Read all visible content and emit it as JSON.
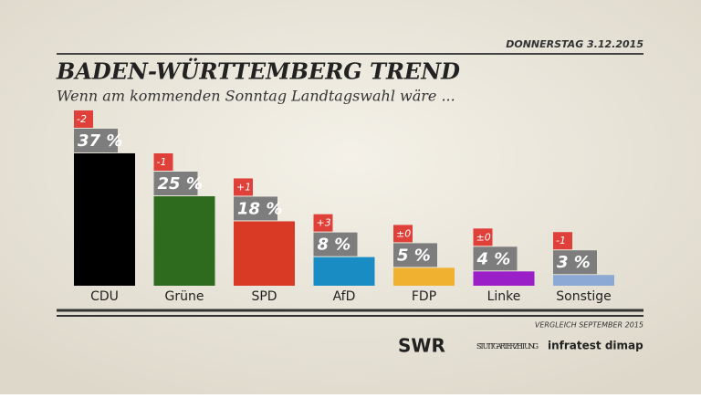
{
  "chart_data": {
    "type": "bar",
    "date": "DONNERSTAG 3.12.2015",
    "title": "BADEN-WÜRTTEMBERG TREND",
    "subtitle": "Wenn am kommenden Sonntag Landtagswahl wäre ...",
    "categories": [
      "CDU",
      "Grüne",
      "SPD",
      "AfD",
      "FDP",
      "Linke",
      "Sonstige"
    ],
    "values": [
      37,
      25,
      18,
      8,
      5,
      4,
      3
    ],
    "value_labels": [
      "37 %",
      "25 %",
      "18 %",
      "8 %",
      "5 %",
      "4 %",
      "3 %"
    ],
    "changes": [
      -2,
      -1,
      1,
      3,
      0,
      0,
      -1
    ],
    "change_labels": [
      "-2",
      "-1",
      "+1",
      "+3",
      "±0",
      "±0",
      "-1"
    ],
    "colors": [
      "#000000",
      "#2e6b1e",
      "#d93a26",
      "#1a8cc4",
      "#f0b030",
      "#9a1fc8",
      "#8ca8d4"
    ],
    "note": "VERGLEICH SEPTEMBER 2015",
    "sources": [
      "SWR",
      "STUTTGARTER ZEITUNG",
      "infratest dimap"
    ]
  }
}
